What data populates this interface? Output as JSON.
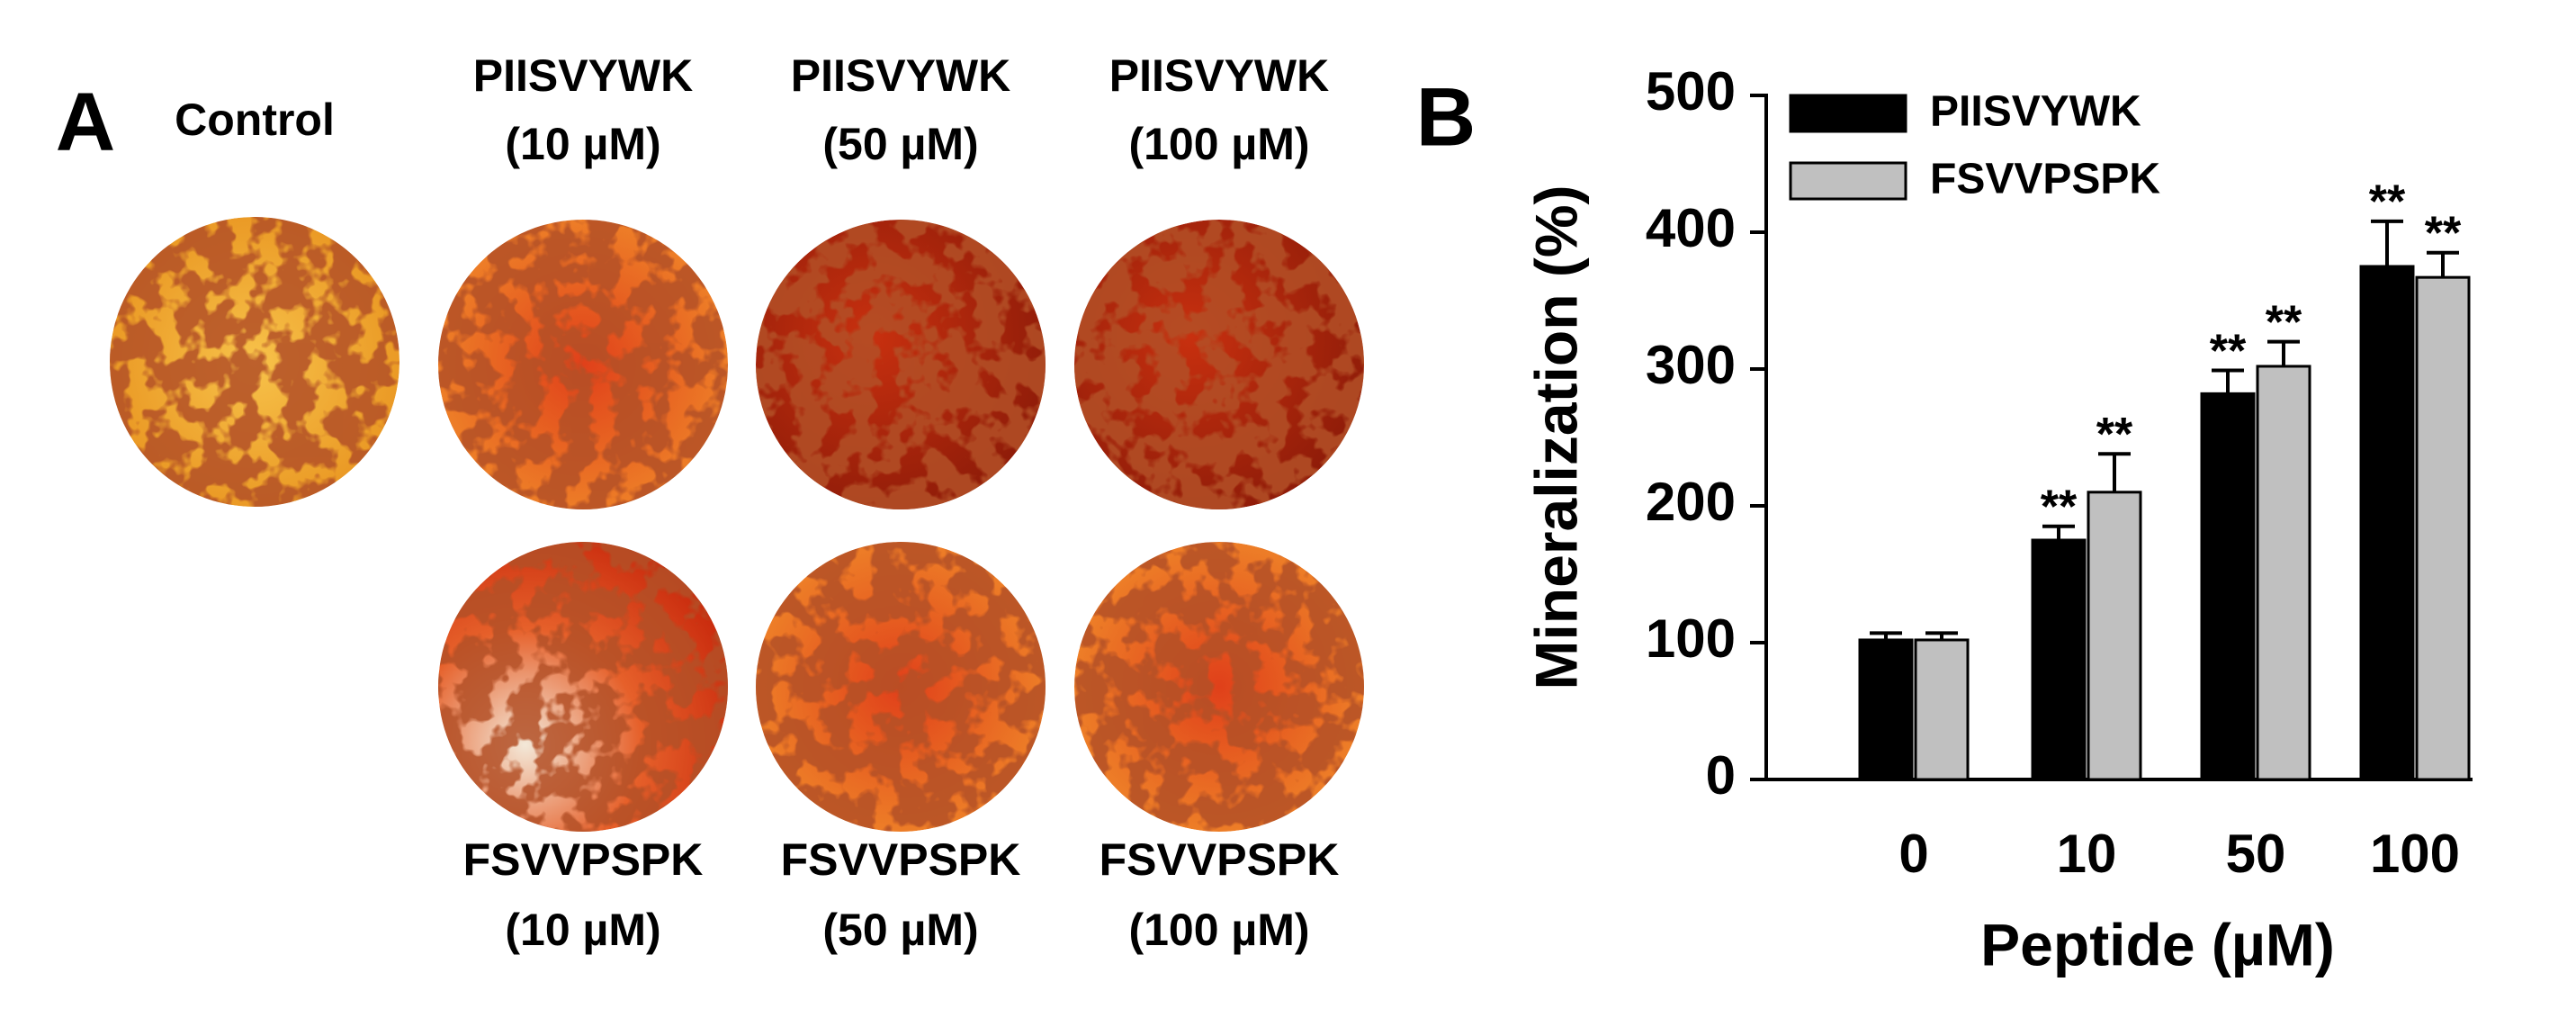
{
  "panel_a": {
    "label": "A",
    "images": [
      {
        "name": "Control"
      },
      {
        "name": "PIISVYWK",
        "dose": "(10 µM)"
      },
      {
        "name": "PIISVYWK",
        "dose": "(50 µM)"
      },
      {
        "name": "PIISVYWK",
        "dose": "(100 µM)"
      },
      {
        "name": "FSVVPSPK",
        "dose": "(10 µM)"
      },
      {
        "name": "FSVVPSPK",
        "dose": "(50 µM)"
      },
      {
        "name": "FSVVPSPK",
        "dose": "(100 µM)"
      }
    ]
  },
  "chart_data": {
    "type": "bar",
    "panel_label": "B",
    "xlabel": "Peptide (µM)",
    "ylabel": "Mineralization (%)",
    "categories": [
      "0",
      "10",
      "50",
      "100"
    ],
    "series": [
      {
        "name": "PIISVYWK",
        "color": "#000000",
        "values": [
          102,
          175,
          282,
          375
        ],
        "errors": [
          5,
          10,
          17,
          33
        ],
        "annotations": [
          null,
          "**",
          "**",
          "**"
        ]
      },
      {
        "name": "FSVVPSPK",
        "color": "#c0c0c0",
        "values": [
          102,
          210,
          302,
          367
        ],
        "errors": [
          5,
          28,
          18,
          18
        ],
        "annotations": [
          null,
          "**",
          "**",
          "**"
        ]
      }
    ],
    "ylim": [
      0,
      500
    ],
    "yticks": [
      0,
      100,
      200,
      300,
      400,
      500
    ],
    "legend": "upper left"
  }
}
